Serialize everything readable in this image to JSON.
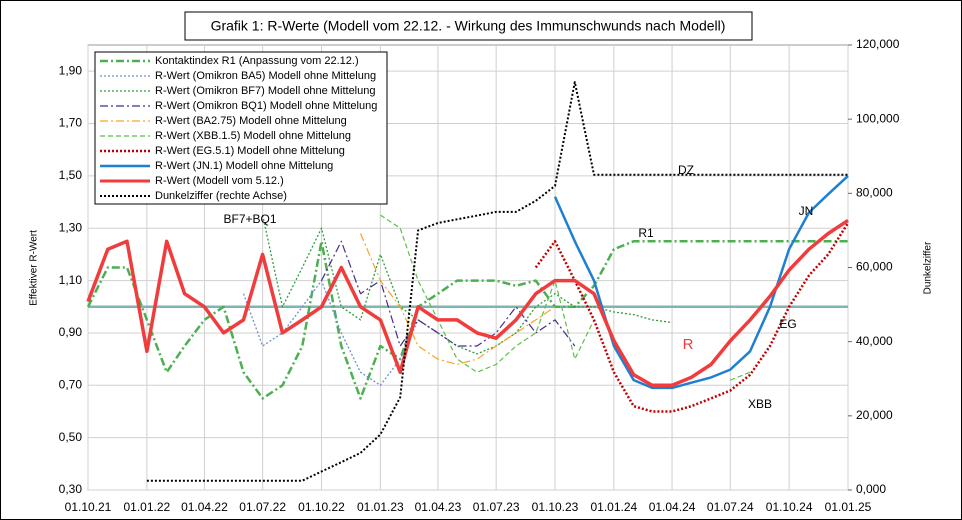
{
  "chart_data": {
    "type": "line",
    "title": "Grafik 1: R-Werte  (Modell vom 22.12. - Wirkung des Immunschwunds nach Modell)",
    "ylabel": "Effektiver R-Wert",
    "y2label": "Dunkelziffer",
    "x": [
      "01.10.21",
      "01.11.21",
      "01.12.21",
      "01.01.22",
      "01.02.22",
      "01.03.22",
      "01.04.22",
      "01.05.22",
      "01.06.22",
      "01.07.22",
      "01.08.22",
      "01.09.22",
      "01.10.22",
      "01.11.22",
      "01.12.22",
      "01.01.23",
      "01.02.23",
      "01.03.23",
      "01.04.23",
      "01.05.23",
      "01.06.23",
      "01.07.23",
      "01.08.23",
      "01.09.23",
      "01.10.23",
      "01.11.23",
      "01.12.23",
      "01.01.24",
      "01.02.24",
      "01.03.24",
      "01.04.24",
      "01.05.24",
      "01.06.24",
      "01.07.24",
      "01.08.24",
      "01.09.24",
      "01.10.24",
      "01.11.24",
      "01.12.24",
      "01.01.25"
    ],
    "xlim": [
      "01.10.21",
      "01.01.25"
    ],
    "xticks": [
      "01.10.21",
      "01.01.22",
      "01.04.22",
      "01.07.22",
      "01.10.22",
      "01.01.23",
      "01.04.23",
      "01.07.23",
      "01.10.23",
      "01.01.24",
      "01.04.24",
      "01.07.24",
      "01.10.24",
      "01.01.25"
    ],
    "ylim": [
      0.3,
      2.0
    ],
    "yticks": [
      {
        "value": 0.3,
        "label": "0,30"
      },
      {
        "value": 0.5,
        "label": "0,50"
      },
      {
        "value": 0.7,
        "label": "0,70"
      },
      {
        "value": 0.9,
        "label": "0,90"
      },
      {
        "value": 1.1,
        "label": "1,10"
      },
      {
        "value": 1.3,
        "label": "1,30"
      },
      {
        "value": 1.5,
        "label": "1,50"
      },
      {
        "value": 1.7,
        "label": "1,70"
      },
      {
        "value": 1.9,
        "label": "1,90"
      }
    ],
    "y2lim": [
      0,
      120000
    ],
    "y2ticks": [
      {
        "value": 0,
        "label": "0,000"
      },
      {
        "value": 20000,
        "label": "20,000"
      },
      {
        "value": 40000,
        "label": "40,000"
      },
      {
        "value": 60000,
        "label": "60,000"
      },
      {
        "value": 80000,
        "label": "80,000"
      },
      {
        "value": 100000,
        "label": "100,000"
      },
      {
        "value": 120000,
        "label": "120,000"
      }
    ],
    "grid": true,
    "hline": {
      "value": 1.0,
      "color": "#7fb5b0"
    },
    "series": [
      {
        "name": "Kontaktindex R1 (Anpassung vom 22.12.)",
        "color": "#4caf50",
        "style": "dashdot",
        "width": 2.5,
        "values": [
          1.0,
          1.15,
          1.15,
          0.95,
          0.75,
          0.85,
          0.95,
          1.0,
          0.75,
          0.65,
          0.7,
          0.85,
          1.25,
          0.85,
          0.65,
          0.85,
          0.8,
          1.0,
          1.05,
          1.1,
          1.1,
          1.1,
          1.08,
          1.1,
          1.0,
          1.0,
          1.08,
          1.22,
          1.25,
          1.25,
          1.25,
          1.25,
          1.25,
          1.25,
          1.25,
          1.25,
          1.25,
          1.25,
          1.25,
          1.25
        ]
      },
      {
        "name": "R-Wert (Omikron BA5) Modell ohne Mittelung",
        "color": "#6f8fd0",
        "style": "dot",
        "width": 1.3,
        "values": [
          null,
          null,
          null,
          null,
          null,
          null,
          null,
          null,
          1.05,
          0.85,
          0.9,
          1.0,
          1.1,
          0.9,
          0.75,
          0.7,
          0.8,
          0.95,
          0.9,
          0.85,
          null,
          null,
          null,
          null,
          null,
          null,
          null,
          null,
          null,
          null,
          null,
          null,
          null,
          null,
          null,
          null,
          null,
          null,
          null,
          null
        ]
      },
      {
        "name": "R-Wert (Omikron BF7) Modell ohne Mittelung",
        "color": "#2e9e3a",
        "style": "dot",
        "width": 1.3,
        "values": [
          null,
          null,
          null,
          null,
          null,
          null,
          null,
          null,
          null,
          1.35,
          1.0,
          1.15,
          1.3,
          1.0,
          0.95,
          1.2,
          1.0,
          0.95,
          0.9,
          0.85,
          0.82,
          0.85,
          0.9,
          1.0,
          1.05,
          1.0,
          1.0,
          0.98,
          0.97,
          0.95,
          0.94,
          null,
          null,
          null,
          null,
          null,
          null,
          null,
          null,
          null
        ]
      },
      {
        "name": "R-Wert (Omikron BQ1) Modell ohne Mittelung",
        "color": "#4b2a8a",
        "style": "dashdot",
        "width": 1.2,
        "values": [
          null,
          null,
          null,
          null,
          null,
          null,
          null,
          null,
          null,
          null,
          null,
          null,
          1.1,
          1.25,
          1.05,
          1.1,
          0.85,
          0.95,
          0.9,
          0.85,
          0.85,
          0.9,
          1.0,
          0.9,
          0.95,
          0.85,
          null,
          null,
          null,
          null,
          null,
          null,
          null,
          null,
          null,
          null,
          null,
          null,
          null,
          null
        ]
      },
      {
        "name": "R-Wert (BA2.75) Modell ohne Mittelung",
        "color": "#f5a623",
        "style": "dashdot",
        "width": 1.2,
        "values": [
          null,
          null,
          null,
          null,
          null,
          null,
          null,
          null,
          null,
          null,
          null,
          null,
          null,
          null,
          1.28,
          1.1,
          1.0,
          0.85,
          0.8,
          0.78,
          0.8,
          0.85,
          0.9,
          0.95,
          1.0,
          null,
          null,
          null,
          null,
          null,
          null,
          null,
          null,
          null,
          null,
          null,
          null,
          null,
          null,
          null
        ]
      },
      {
        "name": "R-Wert (XBB.1.5) Modell ohne Mittelung",
        "color": "#5cbf4a",
        "style": "dash",
        "width": 1.2,
        "values": [
          null,
          null,
          null,
          null,
          null,
          null,
          null,
          null,
          null,
          null,
          null,
          null,
          null,
          null,
          null,
          1.35,
          1.3,
          1.1,
          0.95,
          0.8,
          0.75,
          0.78,
          0.85,
          0.9,
          1.1,
          0.8,
          0.95,
          null,
          null,
          null,
          null,
          null,
          null,
          0.72,
          0.75,
          null,
          null,
          null,
          null,
          null
        ]
      },
      {
        "name": "R-Wert (EG.5.1) Modell ohne Mittelung",
        "color": "#c00000",
        "style": "dot",
        "width": 2.5,
        "values": [
          null,
          null,
          null,
          null,
          null,
          null,
          null,
          null,
          null,
          null,
          null,
          null,
          null,
          null,
          null,
          null,
          null,
          null,
          null,
          null,
          null,
          null,
          null,
          1.15,
          1.25,
          1.1,
          0.95,
          0.75,
          0.62,
          0.6,
          0.6,
          0.62,
          0.65,
          0.68,
          0.74,
          0.85,
          1.0,
          1.12,
          1.2,
          1.32
        ]
      },
      {
        "name": "R-Wert (JN.1) Modell ohne Mittelung",
        "color": "#1f7fd0",
        "style": "solid",
        "width": 2.5,
        "values": [
          null,
          null,
          null,
          null,
          null,
          null,
          null,
          null,
          null,
          null,
          null,
          null,
          null,
          null,
          null,
          null,
          null,
          null,
          null,
          null,
          null,
          null,
          null,
          null,
          1.42,
          1.25,
          1.1,
          0.85,
          0.72,
          0.69,
          0.69,
          0.71,
          0.73,
          0.76,
          0.83,
          1.0,
          1.22,
          1.36,
          1.43,
          1.5
        ]
      },
      {
        "name": "R-Wert (Modell vom 5.12.)",
        "color": "#f03c3c",
        "style": "solid",
        "width": 3.5,
        "values": [
          1.02,
          1.22,
          1.25,
          0.83,
          1.25,
          1.05,
          1.0,
          0.9,
          0.95,
          1.2,
          0.9,
          0.95,
          1.0,
          1.15,
          1.0,
          0.95,
          0.75,
          1.0,
          0.95,
          0.95,
          0.9,
          0.88,
          0.95,
          1.05,
          1.1,
          1.1,
          1.05,
          0.87,
          0.74,
          0.7,
          0.7,
          0.73,
          0.78,
          0.87,
          0.95,
          1.04,
          1.14,
          1.22,
          1.28,
          1.33
        ]
      },
      {
        "name": "Dunkelziffer (rechte Achse)",
        "color": "#000000",
        "style": "dot",
        "width": 2,
        "axis": "y2",
        "values": [
          null,
          null,
          null,
          2500,
          2500,
          2500,
          2500,
          2500,
          2500,
          2500,
          2500,
          2500,
          5000,
          7500,
          10000,
          15000,
          25000,
          70000,
          72000,
          73000,
          74000,
          75000,
          75000,
          78000,
          82000,
          110000,
          85000,
          85000,
          85000,
          85000,
          85000,
          85000,
          85000,
          85000,
          85000,
          85000,
          85000,
          85000,
          85000,
          85000
        ]
      }
    ],
    "annotations": [
      "BF7+BQ1",
      "R1",
      "DZ",
      "JN",
      "R",
      "EG",
      "XBB"
    ]
  }
}
